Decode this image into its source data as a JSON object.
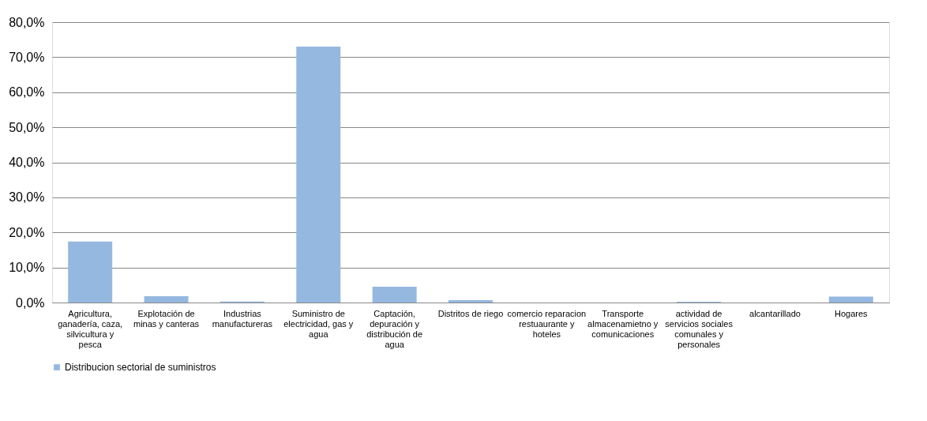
{
  "chart_data": {
    "type": "bar",
    "categories": [
      "Agricultura, ganadería, caza, silvicultura y pesca",
      "Explotación de minas y canteras",
      "Industrias manufactureras",
      "Suministro de electricidad, gas y agua",
      "Captación, depuración y distribución de agua",
      "Distritos de riego",
      "comercio reparacion restuaurante y hoteles",
      "Transporte almacenamietno y comunicaciones",
      "actividad de servicios sociales comunales y personales",
      "alcantarillado",
      "Hogares"
    ],
    "series": [
      {
        "name": "Distribucion sectorial de suministros",
        "color": "#95b8e0",
        "values": [
          17.4,
          1.8,
          0.3,
          73.0,
          4.5,
          0.7,
          0,
          0,
          0.2,
          0,
          1.7
        ]
      }
    ],
    "ylim": [
      0,
      80
    ],
    "yticks": [
      {
        "value": 0,
        "label": "0,0%"
      },
      {
        "value": 10,
        "label": "10,0%"
      },
      {
        "value": 20,
        "label": "20,0%"
      },
      {
        "value": 30,
        "label": "30,0%"
      },
      {
        "value": 40,
        "label": "40,0%"
      },
      {
        "value": 50,
        "label": "50,0%"
      },
      {
        "value": 60,
        "label": "60,0%"
      },
      {
        "value": 70,
        "label": "70,0%"
      },
      {
        "value": 80,
        "label": "80,0%"
      }
    ],
    "grid": "y",
    "legend": "bottom"
  }
}
